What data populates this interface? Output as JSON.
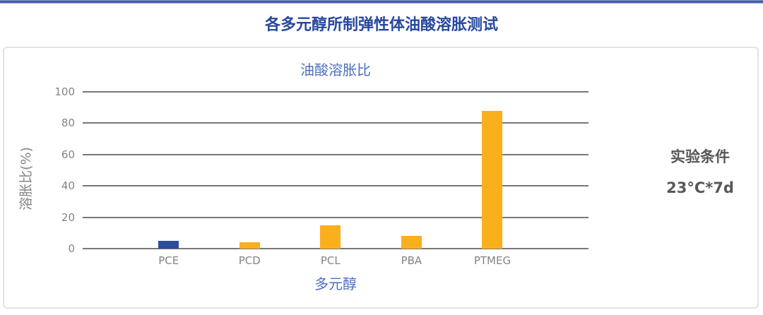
{
  "header": {
    "title": "各多元醇所制弹性体油酸溶胀测试"
  },
  "conditions": {
    "heading": "实验条件",
    "value": "23°C*7d"
  },
  "colors": {
    "accent_blue": "#27489e",
    "chart_title_blue": "#4c70bf",
    "bar_blue": "#2c4d9b",
    "bar_orange": "#faaf1d",
    "axis_gray": "#848484",
    "gridline_gray": "#787878",
    "conditions_gray": "#58585a",
    "card_border": "#e3e3e3"
  },
  "chart_data": {
    "type": "bar",
    "title": "油酸溶胀比",
    "xlabel": "多元醇",
    "ylabel": "溶胀比(%)",
    "categories": [
      "PCE",
      "PCD",
      "PCL",
      "PBA",
      "PTMEG"
    ],
    "values": [
      5,
      4,
      15,
      8,
      88
    ],
    "bar_colors": [
      "#2c4d9b",
      "#faaf1d",
      "#faaf1d",
      "#faaf1d",
      "#faaf1d"
    ],
    "ylim": [
      0,
      100
    ],
    "yticks": [
      0,
      20,
      40,
      60,
      80,
      100
    ],
    "grid": true,
    "legend": false
  }
}
